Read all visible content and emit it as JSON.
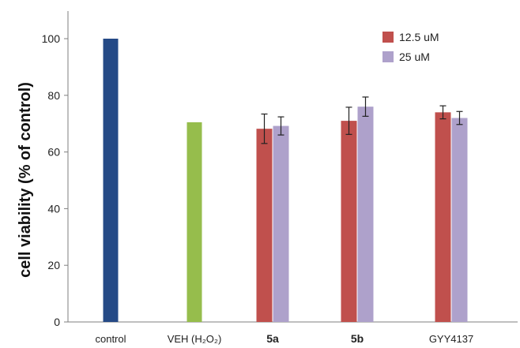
{
  "chart_data": {
    "type": "bar",
    "title": "",
    "xlabel": "",
    "ylabel": "cell viability (% of control)",
    "ylim": [
      0,
      100
    ],
    "yticks": [
      0,
      20,
      40,
      60,
      80,
      100
    ],
    "grid": false,
    "legend_position": "top-right",
    "categories": [
      {
        "label": "control",
        "bold": false
      },
      {
        "label": "VEH (H₂O₂)",
        "bold": false
      },
      {
        "label": "5a",
        "bold": true
      },
      {
        "label": "5b",
        "bold": true
      },
      {
        "label": "GYY4137",
        "bold": false
      }
    ],
    "single_bars": [
      {
        "category": "control",
        "value": 100,
        "color": "#254a86"
      },
      {
        "category": "VEH (H₂O₂)",
        "value": 70.5,
        "color": "#96bd4c"
      }
    ],
    "series": [
      {
        "name": "12.5 uM",
        "color": "#c0504d",
        "values": [
          null,
          null,
          68.2,
          71.0,
          74.0
        ],
        "errors": [
          null,
          null,
          5.2,
          4.8,
          2.3
        ]
      },
      {
        "name": "25 uM",
        "color": "#aea1cb",
        "values": [
          null,
          null,
          69.2,
          76.0,
          72.0
        ],
        "errors": [
          null,
          null,
          3.2,
          3.4,
          2.3
        ]
      }
    ]
  }
}
